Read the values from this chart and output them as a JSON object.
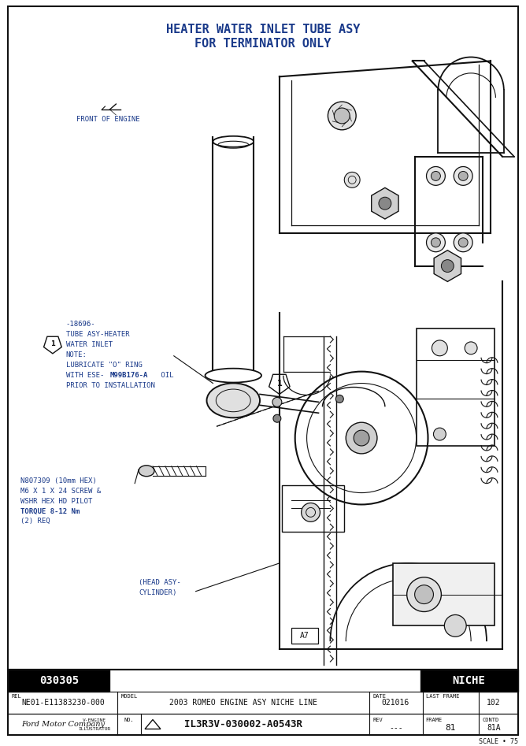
{
  "title_line1": "HEATER WATER INLET TUBE ASY",
  "title_line2": "FOR TERMINATOR ONLY",
  "title_color": "#1a3a8a",
  "bg_color": "#ffffff",
  "diagram_color": "#111111",
  "label_text_color": "#1a3a8a",
  "footer_left_num": "030305",
  "footer_right": "NICHE",
  "footer_rel_label": "REL",
  "footer_rel": "NE01-E11383230-000",
  "footer_model_label": "MODEL",
  "footer_model": "2003 ROMEO ENGINE ASY NICHE LINE",
  "footer_date_label": "DATE",
  "footer_date": "021016",
  "footer_last_frame_label": "LAST FRAME",
  "footer_last_frame": "102",
  "footer_ford": "Ford Motor Company",
  "footer_part": "IL3R3V-030002-A0543R",
  "footer_rev_label": "REV",
  "footer_rev": "---",
  "footer_frame_label": "FRAME",
  "footer_frame": "81",
  "footer_contd_label": "CONTD",
  "footer_contd": "81A",
  "footer_scale": "SCALE • 75",
  "front_engine_text": "FRONT OF ENGINE",
  "label1_line0": "-18696-",
  "label1_line1": "TUBE ASY-HEATER",
  "label1_line2": "WATER INLET",
  "label1_line3": "NOTE:",
  "label1_line4": "LUBRICATE \"O\" RING",
  "label1_line5": "WITH ESE-M99B176-A OIL",
  "label1_line6": "PRIOR TO INSTALLATION",
  "label2_line0": "N807309 (10mm HEX)",
  "label2_line1": "M6 X 1 X 24 SCREW &",
  "label2_line2": "WSHR HEX HD PILOT",
  "label2_line3": "TORQUE 8-12 Nm",
  "label2_line4": "(2) REQ",
  "head_asy_line0": "(HEAD ASY-",
  "head_asy_line1": "CYLINDER)",
  "a7_label": "A7"
}
